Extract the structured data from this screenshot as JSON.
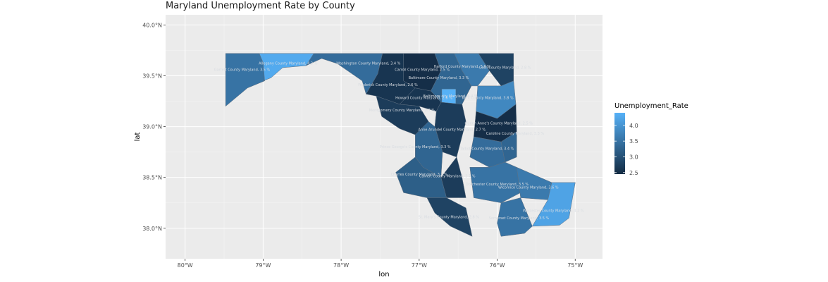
{
  "chart_data": {
    "type": "choropleth",
    "title": "Maryland Unemployment Rate by County",
    "xlabel": "lon",
    "ylabel": "lat",
    "xlim": [
      -80.25,
      -74.65
    ],
    "ylim": [
      37.7,
      40.1
    ],
    "x_ticks": [
      {
        "value": -80,
        "label": "80°W"
      },
      {
        "value": -79,
        "label": "79°W"
      },
      {
        "value": -78,
        "label": "78°W"
      },
      {
        "value": -77,
        "label": "77°W"
      },
      {
        "value": -76,
        "label": "76°W"
      },
      {
        "value": -75,
        "label": "75°W"
      }
    ],
    "y_ticks": [
      {
        "value": 38.0,
        "label": "38.0°N"
      },
      {
        "value": 38.5,
        "label": "38.5°N"
      },
      {
        "value": 39.0,
        "label": "39.0°N"
      },
      {
        "value": 39.5,
        "label": "39.5°N"
      },
      {
        "value": 40.0,
        "label": "40.0°N"
      }
    ],
    "legend": {
      "title": "Unemployment_Rate",
      "position": "right",
      "range": [
        2.45,
        4.4
      ],
      "breaks": [
        2.5,
        3.0,
        3.5,
        4.0
      ],
      "break_labels": [
        "2.5",
        "3.0",
        "3.5",
        "4.0"
      ],
      "low_color": "#132B43",
      "high_color": "#56B1F7"
    },
    "grid": true,
    "background": "#EBEBEB",
    "regions": [
      {
        "name": "Garrett County Maryland",
        "rate": 3.5,
        "label": "Garrett County Maryland, 3.5 %",
        "label_lon": -79.27,
        "label_lat": 39.55,
        "polygon": [
          [
            -79.48,
            39.72
          ],
          [
            -79.05,
            39.72
          ],
          [
            -79.0,
            39.63
          ],
          [
            -78.98,
            39.45
          ],
          [
            -79.2,
            39.38
          ],
          [
            -79.48,
            39.2
          ]
        ]
      },
      {
        "name": "Allegany County Maryland",
        "rate": 4.3,
        "label": "Allegany County Maryland, 4.3 %",
        "label_lon": -78.68,
        "label_lat": 39.61,
        "polygon": [
          [
            -79.05,
            39.72
          ],
          [
            -78.35,
            39.72
          ],
          [
            -78.45,
            39.6
          ],
          [
            -78.75,
            39.58
          ],
          [
            -78.9,
            39.48
          ],
          [
            -79.0,
            39.45
          ],
          [
            -78.98,
            39.45
          ],
          [
            -79.0,
            39.63
          ]
        ]
      },
      {
        "name": "Washington County Maryland",
        "rate": 3.4,
        "label": "Washington County Maryland, 3.4 %",
        "label_lon": -77.65,
        "label_lat": 39.61,
        "polygon": [
          [
            -78.35,
            39.72
          ],
          [
            -77.47,
            39.72
          ],
          [
            -77.53,
            39.52
          ],
          [
            -77.68,
            39.32
          ],
          [
            -77.73,
            39.45
          ],
          [
            -78.05,
            39.62
          ],
          [
            -78.25,
            39.67
          ],
          [
            -78.45,
            39.6
          ]
        ]
      },
      {
        "name": "Frederick County Maryland",
        "rate": 2.6,
        "label": "Frederick County Maryland, 2.6 %",
        "label_lon": -77.4,
        "label_lat": 39.4,
        "polygon": [
          [
            -77.47,
            39.72
          ],
          [
            -77.2,
            39.72
          ],
          [
            -77.2,
            39.45
          ],
          [
            -77.05,
            39.38
          ],
          [
            -77.25,
            39.22
          ],
          [
            -77.55,
            39.3
          ],
          [
            -77.68,
            39.32
          ],
          [
            -77.53,
            39.52
          ]
        ]
      },
      {
        "name": "Carroll County Maryland",
        "rate": 2.5,
        "label": "Carroll County Maryland, 2.5 %",
        "label_lon": -76.96,
        "label_lat": 39.55,
        "polygon": [
          [
            -77.2,
            39.72
          ],
          [
            -76.8,
            39.72
          ],
          [
            -76.72,
            39.55
          ],
          [
            -76.85,
            39.35
          ],
          [
            -77.05,
            39.38
          ],
          [
            -77.2,
            39.45
          ]
        ]
      },
      {
        "name": "Baltimore County Maryland",
        "rate": 3.3,
        "label": "Baltimore County Maryland, 3.3 %",
        "label_lon": -76.75,
        "label_lat": 39.47,
        "polygon": [
          [
            -76.8,
            39.72
          ],
          [
            -76.55,
            39.72
          ],
          [
            -76.45,
            39.55
          ],
          [
            -76.33,
            39.4
          ],
          [
            -76.45,
            39.22
          ],
          [
            -76.72,
            39.24
          ],
          [
            -76.85,
            39.35
          ],
          [
            -76.72,
            39.55
          ]
        ]
      },
      {
        "name": "Harford County Maryland",
        "rate": 3.6,
        "label": "Harford County Maryland, 3.6 %",
        "label_lon": -76.45,
        "label_lat": 39.58,
        "polygon": [
          [
            -76.55,
            39.72
          ],
          [
            -76.24,
            39.72
          ],
          [
            -76.1,
            39.55
          ],
          [
            -76.25,
            39.4
          ],
          [
            -76.33,
            39.4
          ],
          [
            -76.45,
            39.55
          ]
        ]
      },
      {
        "name": "Cecil County Maryland",
        "rate": 2.8,
        "label": "Cecil County Maryland, 2.8 %",
        "label_lon": -75.9,
        "label_lat": 39.57,
        "polygon": [
          [
            -76.24,
            39.72
          ],
          [
            -75.79,
            39.72
          ],
          [
            -75.79,
            39.45
          ],
          [
            -75.95,
            39.4
          ],
          [
            -76.1,
            39.55
          ]
        ]
      },
      {
        "name": "Baltimore city Maryland",
        "rate": 4.4,
        "label": "Baltimore city Maryland, 4.4 %",
        "label_lon": -76.6,
        "label_lat": 39.29,
        "polygon": [
          [
            -76.71,
            39.37
          ],
          [
            -76.53,
            39.37
          ],
          [
            -76.53,
            39.2
          ],
          [
            -76.71,
            39.2
          ]
        ]
      },
      {
        "name": "Howard County Maryland",
        "rate": 2.6,
        "label": "Howard County Maryland, 2.6 %",
        "label_lon": -76.94,
        "label_lat": 39.27,
        "polygon": [
          [
            -77.05,
            39.38
          ],
          [
            -76.85,
            39.35
          ],
          [
            -76.72,
            39.24
          ],
          [
            -76.78,
            39.15
          ],
          [
            -77.0,
            39.2
          ],
          [
            -77.25,
            39.22
          ]
        ]
      },
      {
        "name": "Montgomery County Maryland",
        "rate": 2.7,
        "label": "Montgomery County Maryland, 2.7 %",
        "label_lon": -77.22,
        "label_lat": 39.15,
        "polygon": [
          [
            -77.25,
            39.22
          ],
          [
            -77.0,
            39.2
          ],
          [
            -76.88,
            39.05
          ],
          [
            -77.05,
            38.92
          ],
          [
            -77.25,
            38.98
          ],
          [
            -77.48,
            39.1
          ],
          [
            -77.55,
            39.3
          ]
        ]
      },
      {
        "name": "Anne Arundel County Maryland",
        "rate": 2.7,
        "label": "Anne Arundel County Maryland, 2.7 %",
        "label_lon": -76.58,
        "label_lat": 38.96,
        "polygon": [
          [
            -76.78,
            39.15
          ],
          [
            -76.72,
            39.24
          ],
          [
            -76.45,
            39.22
          ],
          [
            -76.4,
            39.05
          ],
          [
            -76.52,
            38.7
          ],
          [
            -76.7,
            38.75
          ],
          [
            -76.8,
            39.0
          ]
        ]
      },
      {
        "name": "Kent County Maryland",
        "rate": 3.8,
        "label": "Kent County Maryland, 3.8 %",
        "label_lon": -76.12,
        "label_lat": 39.27,
        "polygon": [
          [
            -76.25,
            39.4
          ],
          [
            -75.95,
            39.4
          ],
          [
            -75.79,
            39.45
          ],
          [
            -75.76,
            39.22
          ],
          [
            -76.0,
            39.08
          ],
          [
            -76.27,
            39.15
          ]
        ]
      },
      {
        "name": "Queen Anne's County Maryland",
        "rate": 2.5,
        "label": "Queen Anne's County Maryland, 2.5 %",
        "label_lon": -75.98,
        "label_lat": 39.02,
        "polygon": [
          [
            -76.27,
            39.15
          ],
          [
            -76.0,
            39.08
          ],
          [
            -75.76,
            39.22
          ],
          [
            -75.75,
            38.95
          ],
          [
            -75.95,
            38.85
          ],
          [
            -76.3,
            38.9
          ]
        ]
      },
      {
        "name": "Prince George's County Maryland",
        "rate": 3.3,
        "label": "Prince George's County Maryland, 3.3 %",
        "label_lon": -77.05,
        "label_lat": 38.79,
        "polygon": [
          [
            -77.05,
            38.92
          ],
          [
            -76.88,
            39.05
          ],
          [
            -76.8,
            39.0
          ],
          [
            -76.7,
            38.75
          ],
          [
            -76.72,
            38.5
          ],
          [
            -76.95,
            38.6
          ],
          [
            -77.05,
            38.7
          ]
        ]
      },
      {
        "name": "Caroline County Maryland",
        "rate": 3.3,
        "label": "Caroline County Maryland, 3.3 %",
        "label_lon": -75.77,
        "label_lat": 38.92,
        "polygon": [
          [
            -75.95,
            38.85
          ],
          [
            -75.75,
            38.95
          ],
          [
            -75.75,
            38.7
          ],
          [
            -75.9,
            38.65
          ]
        ]
      },
      {
        "name": "Talbot County Maryland",
        "rate": 3.4,
        "label": "Talbot County Maryland, 3.4 %",
        "label_lon": -76.13,
        "label_lat": 38.77,
        "polygon": [
          [
            -76.3,
            38.9
          ],
          [
            -75.95,
            38.85
          ],
          [
            -75.9,
            38.65
          ],
          [
            -76.1,
            38.6
          ],
          [
            -76.35,
            38.7
          ]
        ]
      },
      {
        "name": "Calvert County Maryland",
        "rate": 2.7,
        "label": "Calvert County Maryland, 2.7 %",
        "label_lon": -76.64,
        "label_lat": 38.5,
        "polygon": [
          [
            -76.72,
            38.5
          ],
          [
            -76.52,
            38.7
          ],
          [
            -76.45,
            38.5
          ],
          [
            -76.4,
            38.3
          ],
          [
            -76.65,
            38.3
          ]
        ]
      },
      {
        "name": "Charles County Maryland",
        "rate": 3.2,
        "label": "Charles County Maryland, 3.2 %",
        "label_lon": -77.0,
        "label_lat": 38.52,
        "polygon": [
          [
            -77.05,
            38.7
          ],
          [
            -76.95,
            38.6
          ],
          [
            -76.72,
            38.5
          ],
          [
            -76.65,
            38.3
          ],
          [
            -76.9,
            38.3
          ],
          [
            -77.2,
            38.35
          ],
          [
            -77.3,
            38.55
          ]
        ]
      },
      {
        "name": "Dorchester County Maryland",
        "rate": 3.5,
        "label": "Dorchester County Maryland, 3.5 %",
        "label_lon": -76.0,
        "label_lat": 38.42,
        "polygon": [
          [
            -76.35,
            38.6
          ],
          [
            -76.1,
            38.6
          ],
          [
            -75.9,
            38.65
          ],
          [
            -75.75,
            38.6
          ],
          [
            -75.7,
            38.35
          ],
          [
            -75.95,
            38.25
          ],
          [
            -76.3,
            38.3
          ]
        ]
      },
      {
        "name": "Wicomico County Maryland",
        "rate": 3.6,
        "label": "Wicomico County Maryland, 3.6 %",
        "label_lon": -75.6,
        "label_lat": 38.39,
        "polygon": [
          [
            -75.75,
            38.6
          ],
          [
            -75.3,
            38.45
          ],
          [
            -75.35,
            38.28
          ],
          [
            -75.7,
            38.3
          ]
        ]
      },
      {
        "name": "St. Mary's County Maryland",
        "rate": 2.8,
        "label": "St. Mary's County Maryland, 2.8 %",
        "label_lon": -76.62,
        "label_lat": 38.1,
        "polygon": [
          [
            -76.9,
            38.3
          ],
          [
            -76.65,
            38.3
          ],
          [
            -76.4,
            38.2
          ],
          [
            -76.32,
            37.92
          ],
          [
            -76.6,
            38.02
          ],
          [
            -76.8,
            38.15
          ]
        ]
      },
      {
        "name": "Somerset County Maryland",
        "rate": 3.5,
        "label": "Somerset County Maryland, 3.5 %",
        "label_lon": -75.72,
        "label_lat": 38.09,
        "polygon": [
          [
            -75.95,
            38.25
          ],
          [
            -75.7,
            38.3
          ],
          [
            -75.55,
            38.02
          ],
          [
            -75.65,
            37.95
          ],
          [
            -75.95,
            37.92
          ],
          [
            -76.0,
            38.05
          ]
        ]
      },
      {
        "name": "Worcester County Maryland",
        "rate": 4.2,
        "label": "Worcester County Maryland, 4.2 %",
        "label_lon": -75.28,
        "label_lat": 38.16,
        "polygon": [
          [
            -75.3,
            38.45
          ],
          [
            -75.0,
            38.45
          ],
          [
            -75.08,
            38.1
          ],
          [
            -75.2,
            38.03
          ],
          [
            -75.55,
            38.02
          ],
          [
            -75.35,
            38.28
          ]
        ]
      }
    ]
  }
}
